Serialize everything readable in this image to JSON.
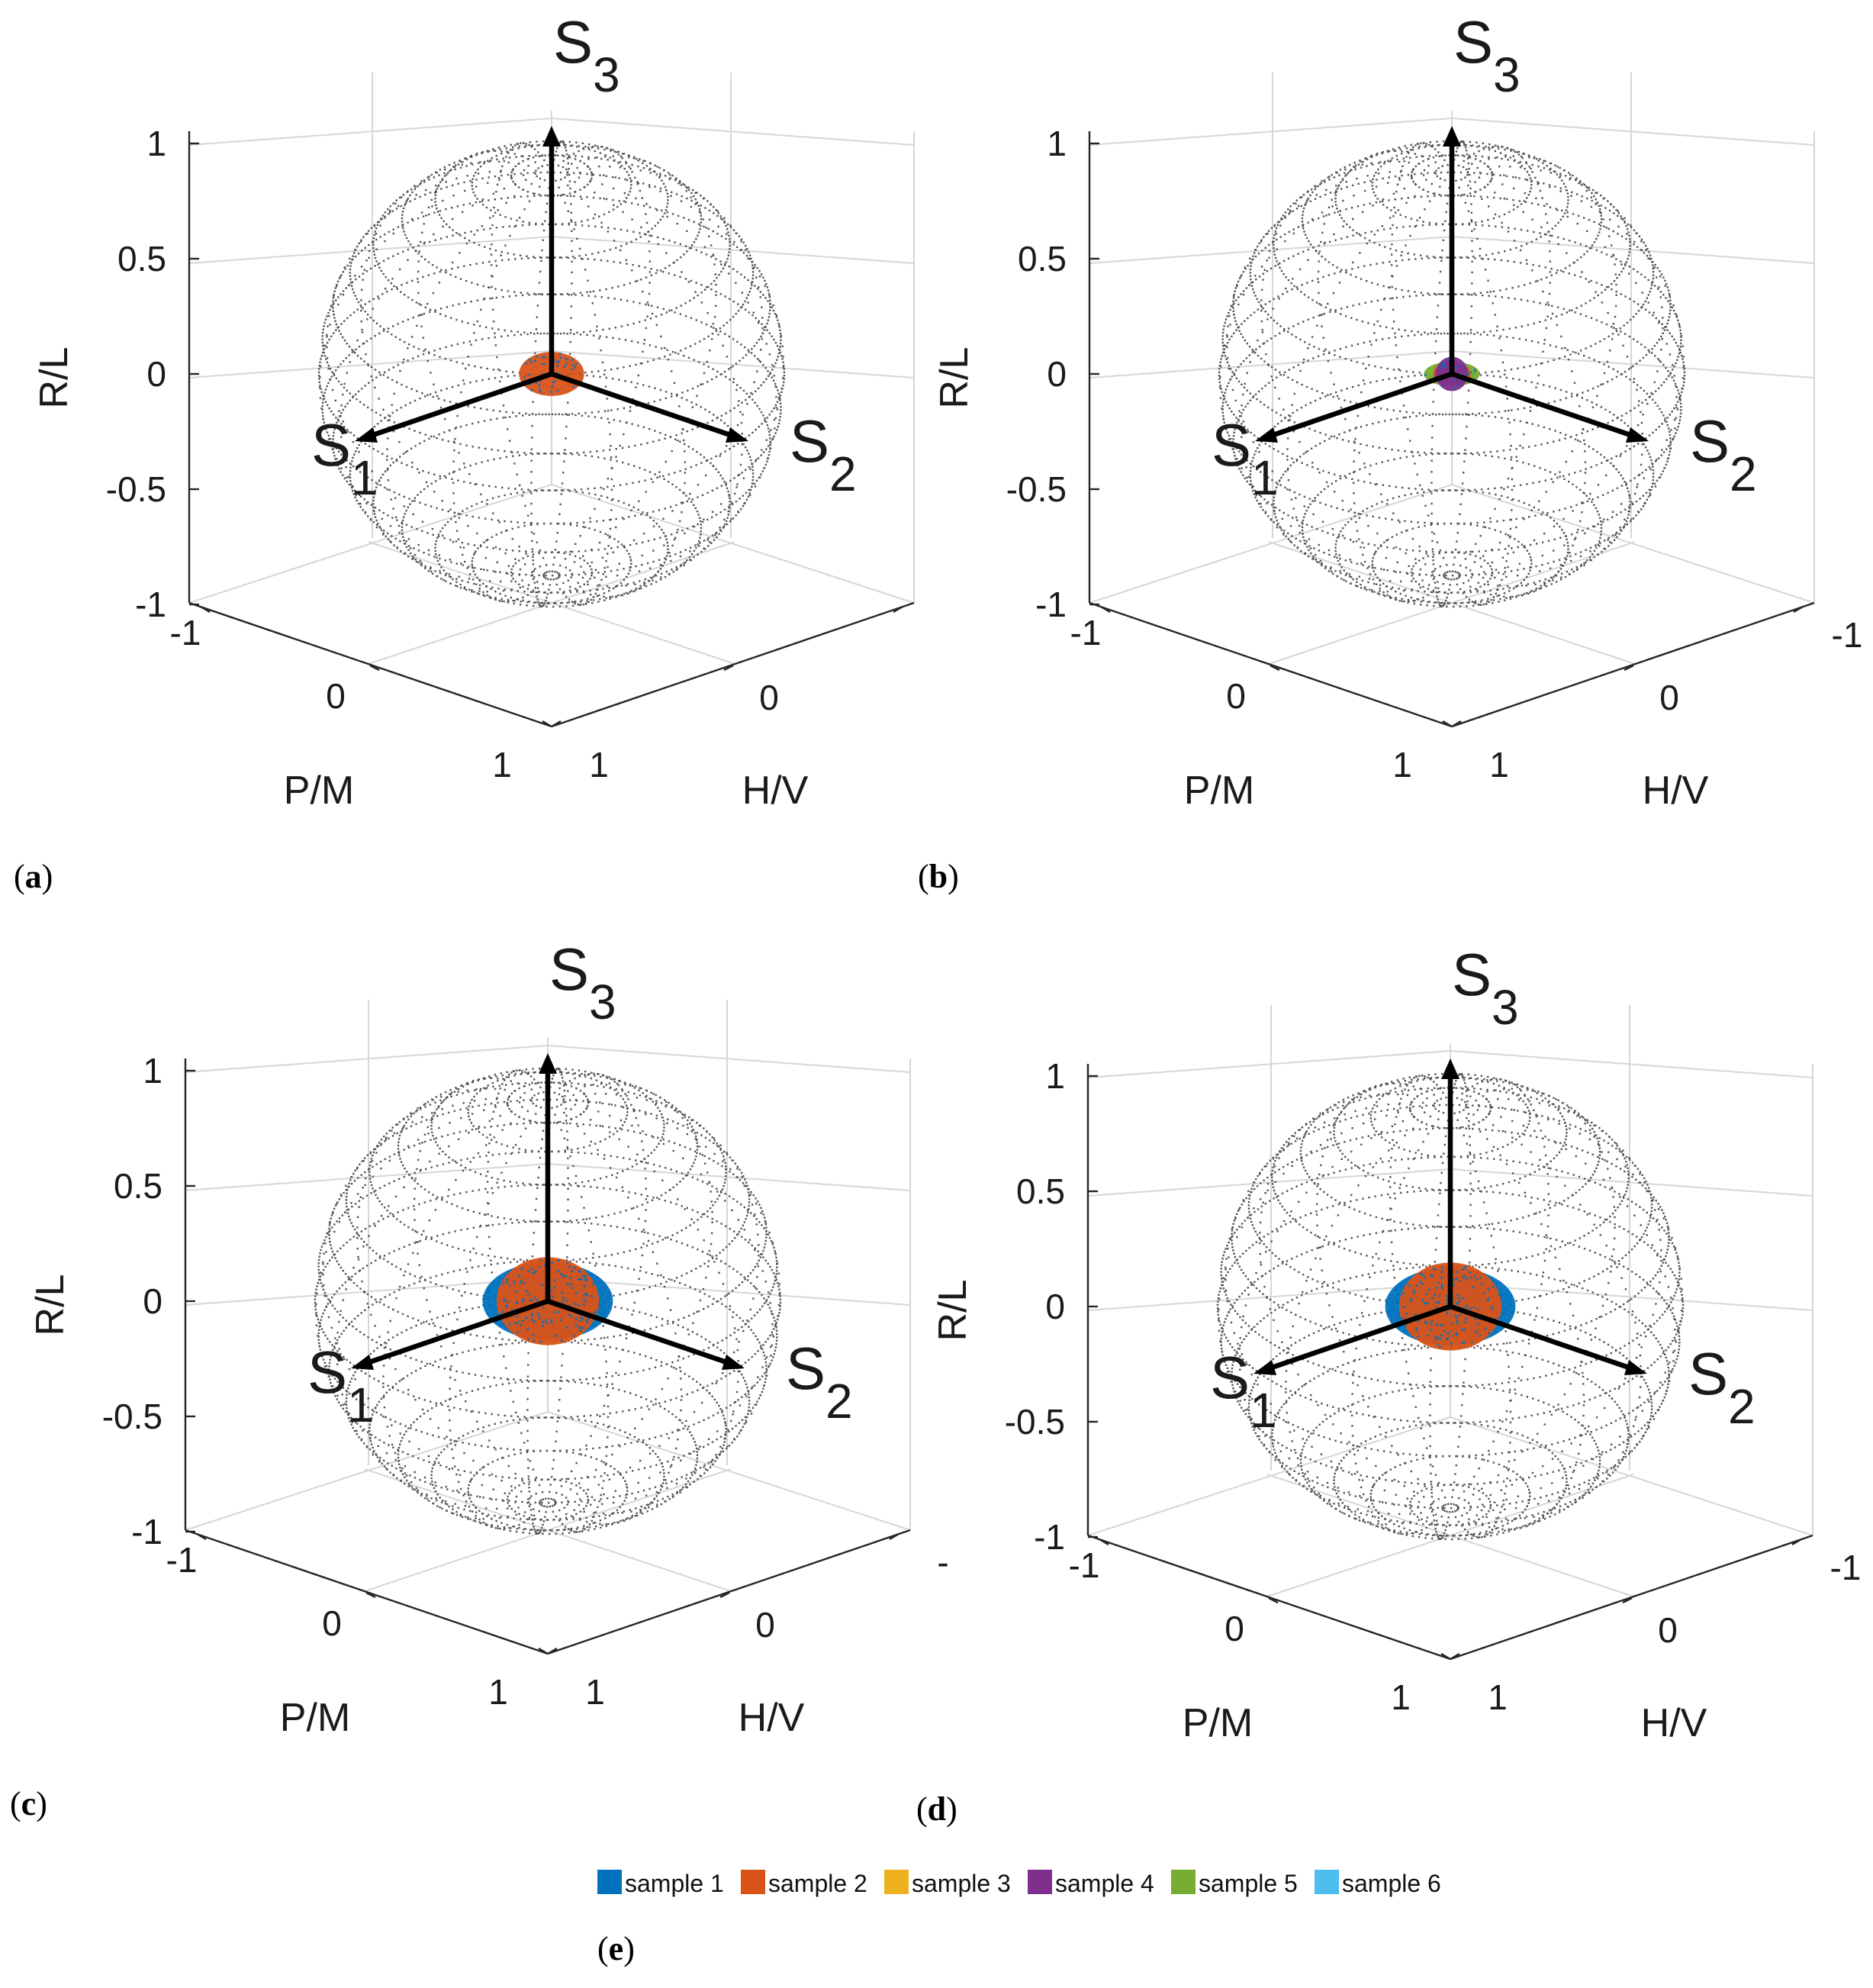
{
  "axis_labels": {
    "z": "R/L",
    "x": "P/M",
    "y": "H/V",
    "s1": {
      "main": "S",
      "sub": "1"
    },
    "s2": {
      "main": "S",
      "sub": "2"
    },
    "s3": {
      "main": "S",
      "sub": "3"
    }
  },
  "chart_data": [
    {
      "id": "a",
      "label": "a",
      "type": "scatter",
      "title": "",
      "xlabel": "P/M",
      "ylabel": "H/V",
      "zlabel": "R/L",
      "zticks": [
        "1",
        "0.5",
        "0",
        "-0.5",
        "-1"
      ],
      "xticks": [
        "-1",
        "0",
        "1"
      ],
      "yticks": [
        "1",
        "0",
        ""
      ],
      "clusters": [
        {
          "sample": "sample 2",
          "center": [
            0,
            0,
            0
          ],
          "radius_x": 0.14,
          "radius_y": 0.09
        }
      ]
    },
    {
      "id": "b",
      "label": "b",
      "type": "scatter",
      "title": "",
      "xlabel": "P/M",
      "ylabel": "H/V",
      "zlabel": "R/L",
      "zticks": [
        "1",
        "0.5",
        "0",
        "-0.5",
        "-1"
      ],
      "xticks": [
        "-1",
        "0",
        "1"
      ],
      "yticks": [
        "1",
        "0",
        "-1"
      ],
      "clusters": [
        {
          "sample": "sample 5",
          "center": [
            0,
            0,
            0
          ],
          "radius_x": 0.12,
          "radius_y": 0.05
        },
        {
          "sample": "sample 2",
          "center": [
            0,
            0,
            0
          ],
          "radius_x": 0.08,
          "radius_y": 0.05
        },
        {
          "sample": "sample 4",
          "center": [
            0,
            0,
            0
          ],
          "radius_x": 0.07,
          "radius_y": 0.07
        }
      ]
    },
    {
      "id": "c",
      "label": "c",
      "type": "scatter",
      "title": "",
      "xlabel": "P/M",
      "ylabel": "H/V",
      "zlabel": "R/L",
      "zticks": [
        "1",
        "0.5",
        "0",
        "-0.5",
        "-1"
      ],
      "xticks": [
        "-1",
        "0",
        "1"
      ],
      "yticks": [
        "1",
        "0",
        "-"
      ],
      "clusters": [
        {
          "sample": "sample 1",
          "center": [
            0,
            0,
            0
          ],
          "radius_x": 0.28,
          "radius_y": 0.16
        },
        {
          "sample": "sample 2",
          "center": [
            0,
            0,
            0
          ],
          "radius_x": 0.22,
          "radius_y": 0.18
        }
      ]
    },
    {
      "id": "d",
      "label": "d",
      "type": "scatter",
      "title": "",
      "xlabel": "P/M",
      "ylabel": "H/V",
      "zlabel": "R/L",
      "zticks": [
        "1",
        "0.5",
        "0",
        "-0.5",
        "-1"
      ],
      "xticks": [
        "-1",
        "0",
        "1"
      ],
      "yticks": [
        "1",
        "0",
        "-1"
      ],
      "clusters": [
        {
          "sample": "sample 1",
          "center": [
            0,
            0,
            0
          ],
          "radius_x": 0.28,
          "radius_y": 0.16
        },
        {
          "sample": "sample 2",
          "center": [
            0,
            0,
            0
          ],
          "radius_x": 0.22,
          "radius_y": 0.18
        }
      ]
    }
  ],
  "legend": {
    "label": "e",
    "items": [
      {
        "name": "sample 1",
        "color": "#0072BD"
      },
      {
        "name": "sample 2",
        "color": "#D95319"
      },
      {
        "name": "sample 3",
        "color": "#EDB120"
      },
      {
        "name": "sample 4",
        "color": "#7E2F8E"
      },
      {
        "name": "sample 5",
        "color": "#77AC30"
      },
      {
        "name": "sample 6",
        "color": "#4DBEEE"
      }
    ]
  }
}
